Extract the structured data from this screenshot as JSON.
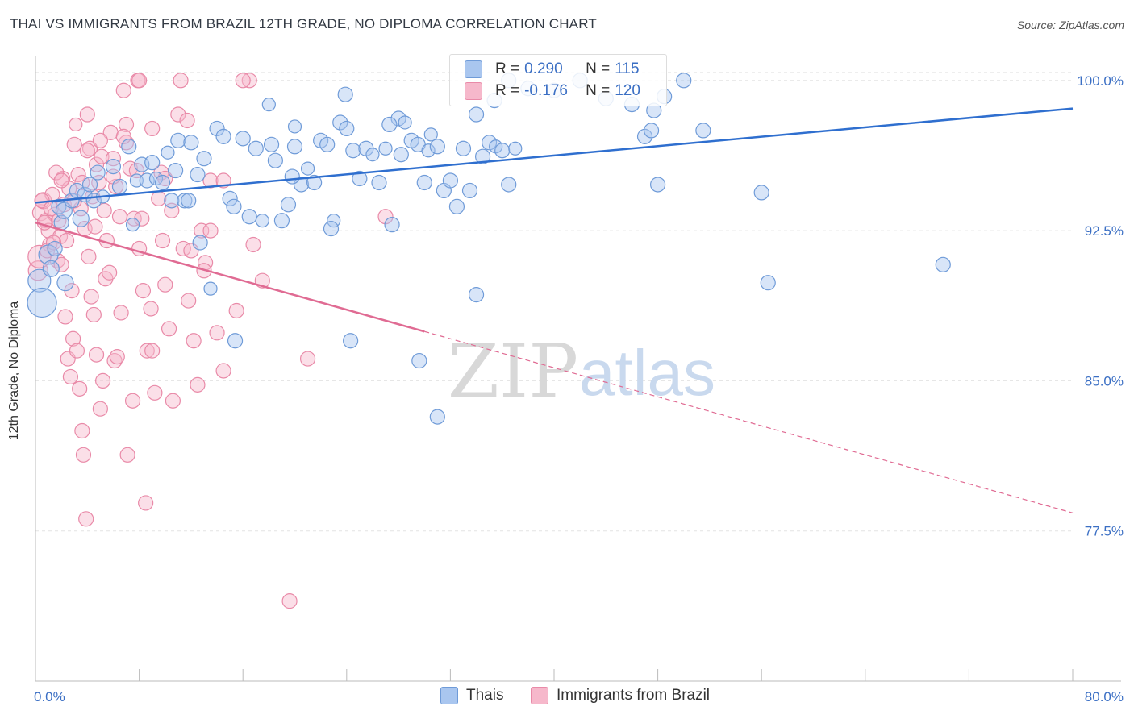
{
  "header": {
    "title": "THAI VS IMMIGRANTS FROM BRAZIL 12TH GRADE, NO DIPLOMA CORRELATION CHART",
    "source": "Source: ZipAtlas.com"
  },
  "watermark": {
    "part1": "ZIP",
    "part2": "atlas"
  },
  "legend": {
    "rows": [
      {
        "r_label": "R =",
        "r_value": "0.290",
        "n_label": "N =",
        "n_value": "115"
      },
      {
        "r_label": "R =",
        "r_value": "-0.176",
        "n_label": "N =",
        "n_value": "120"
      }
    ]
  },
  "bottom_legend": {
    "thais": "Thais",
    "brazil": "Immigrants from Brazil"
  },
  "colors": {
    "thais_fill": "#a9c6ef",
    "thais_stroke": "#6f9bd8",
    "thais_line": "#2f6fcf",
    "brazil_fill": "#f6b8cb",
    "brazil_stroke": "#e98aa8",
    "brazil_line": "#e06b93",
    "tick_label": "#3b6fc4",
    "grid": "#e3e3e3"
  },
  "chart_data": {
    "type": "scatter",
    "title": "THAI VS IMMIGRANTS FROM BRAZIL 12TH GRADE, NO DIPLOMA CORRELATION CHART",
    "xlabel": "",
    "ylabel": "12th Grade, No Diploma",
    "xlim": [
      0,
      80
    ],
    "ylim": [
      70,
      101.2
    ],
    "x_tick_labels": [
      "0.0%",
      "80.0%"
    ],
    "y_ticks": [
      77.5,
      85.0,
      92.5,
      100.0
    ],
    "y_tick_labels": [
      "77.5%",
      "85.0%",
      "92.5%",
      "100.0%"
    ],
    "grid": true,
    "legend_position": "top-center",
    "series": [
      {
        "name": "Thais",
        "R": 0.29,
        "N": 115,
        "trend": {
          "x": [
            0,
            80
          ],
          "y": [
            93.9,
            98.6
          ],
          "style": "solid"
        },
        "points": [
          [
            0.3,
            90.0,
            14
          ],
          [
            0.5,
            88.9,
            18
          ],
          [
            1.0,
            91.3,
            12
          ],
          [
            1.2,
            90.6,
            10
          ],
          [
            1.5,
            91.6,
            9
          ],
          [
            1.8,
            93.7,
            9
          ],
          [
            2.0,
            92.9,
            9
          ],
          [
            2.2,
            93.5,
            10
          ],
          [
            2.3,
            89.9,
            10
          ],
          [
            2.8,
            94.0,
            9
          ],
          [
            3.2,
            94.5,
            9
          ],
          [
            3.5,
            93.1,
            10
          ],
          [
            3.8,
            94.3,
            9
          ],
          [
            4.2,
            94.8,
            9
          ],
          [
            4.5,
            94.0,
            9
          ],
          [
            4.8,
            95.4,
            9
          ],
          [
            5.2,
            94.2,
            8
          ],
          [
            6.0,
            95.7,
            9
          ],
          [
            6.5,
            94.7,
            9
          ],
          [
            7.2,
            96.7,
            9
          ],
          [
            7.5,
            92.8,
            8
          ],
          [
            7.8,
            95.0,
            8
          ],
          [
            8.2,
            95.8,
            9
          ],
          [
            8.6,
            95.0,
            9
          ],
          [
            9.0,
            95.9,
            9
          ],
          [
            9.3,
            95.1,
            8
          ],
          [
            9.8,
            94.9,
            9
          ],
          [
            10.2,
            96.4,
            8
          ],
          [
            10.5,
            94.0,
            9
          ],
          [
            11.0,
            97.0,
            9
          ],
          [
            11.5,
            94.0,
            9
          ],
          [
            12.0,
            96.9,
            9
          ],
          [
            12.5,
            95.3,
            9
          ],
          [
            13.0,
            96.1,
            9
          ],
          [
            13.5,
            89.6,
            8
          ],
          [
            14.0,
            97.6,
            9
          ],
          [
            14.5,
            97.2,
            9
          ],
          [
            15.0,
            94.1,
            9
          ],
          [
            15.3,
            93.7,
            9
          ],
          [
            16.0,
            97.1,
            9
          ],
          [
            17.0,
            96.6,
            9
          ],
          [
            17.5,
            93.0,
            8
          ],
          [
            18.0,
            98.8,
            8
          ],
          [
            18.5,
            96.0,
            9
          ],
          [
            19.0,
            93.0,
            9
          ],
          [
            19.5,
            93.8,
            9
          ],
          [
            20.0,
            96.7,
            9
          ],
          [
            20.5,
            94.8,
            9
          ],
          [
            21.0,
            95.6,
            8
          ],
          [
            21.5,
            94.9,
            9
          ],
          [
            22.0,
            97.0,
            9
          ],
          [
            22.5,
            96.8,
            9
          ],
          [
            23.0,
            93.0,
            8
          ],
          [
            23.5,
            97.9,
            9
          ],
          [
            24.0,
            97.6,
            9
          ],
          [
            24.5,
            96.5,
            9
          ],
          [
            25.0,
            95.1,
            9
          ],
          [
            25.5,
            96.6,
            9
          ],
          [
            26.0,
            96.3,
            8
          ],
          [
            26.5,
            94.9,
            9
          ],
          [
            27.0,
            96.6,
            8
          ],
          [
            27.5,
            92.8,
            9
          ],
          [
            28.0,
            98.1,
            9
          ],
          [
            28.5,
            97.9,
            8
          ],
          [
            29.0,
            97.0,
            9
          ],
          [
            29.5,
            96.8,
            9
          ],
          [
            30.0,
            94.9,
            9
          ],
          [
            30.3,
            96.5,
            8
          ],
          [
            30.5,
            97.3,
            8
          ],
          [
            31.0,
            96.7,
            9
          ],
          [
            31.5,
            94.5,
            9
          ],
          [
            32.0,
            95.0,
            9
          ],
          [
            32.5,
            93.7,
            9
          ],
          [
            33.0,
            96.6,
            9
          ],
          [
            33.5,
            94.5,
            9
          ],
          [
            34.0,
            98.3,
            9
          ],
          [
            34.5,
            96.2,
            9
          ],
          [
            35.0,
            96.9,
            9
          ],
          [
            35.5,
            96.7,
            8
          ],
          [
            36.0,
            96.5,
            9
          ],
          [
            36.5,
            94.8,
            9
          ],
          [
            37.0,
            96.6,
            8
          ],
          [
            12.7,
            91.9,
            9
          ],
          [
            15.4,
            87.0,
            9
          ],
          [
            24.3,
            87.0,
            9
          ],
          [
            29.6,
            86.0,
            9
          ],
          [
            31.0,
            83.2,
            9
          ],
          [
            34.0,
            89.3,
            9
          ],
          [
            47.0,
            97.2,
            9
          ],
          [
            47.5,
            97.5,
            9
          ],
          [
            48.0,
            94.8,
            9
          ],
          [
            50.0,
            100.0,
            9
          ],
          [
            51.5,
            97.5,
            9
          ],
          [
            56.0,
            94.4,
            9
          ],
          [
            56.5,
            89.9,
            9
          ],
          [
            70.0,
            90.8,
            9
          ],
          [
            16.5,
            93.2,
            9
          ],
          [
            20.0,
            97.7,
            8
          ],
          [
            22.8,
            92.6,
            9
          ],
          [
            23.9,
            99.3,
            9
          ],
          [
            27.3,
            97.8,
            9
          ],
          [
            35.4,
            99.0,
            9
          ],
          [
            36.5,
            100.0,
            9
          ],
          [
            38.0,
            99.6,
            9
          ],
          [
            40.0,
            99.5,
            9
          ],
          [
            42.0,
            100.0,
            9
          ],
          [
            44.0,
            99.1,
            9
          ],
          [
            46.0,
            98.8,
            9
          ],
          [
            47.7,
            98.5,
            9
          ],
          [
            48.5,
            99.2,
            9
          ],
          [
            10.8,
            95.5,
            9
          ],
          [
            11.8,
            94.0,
            9
          ],
          [
            18.2,
            96.8,
            9
          ],
          [
            19.8,
            95.2,
            9
          ],
          [
            28.2,
            96.3,
            9
          ]
        ]
      },
      {
        "name": "Immigrants from Brazil",
        "R": -0.176,
        "N": 120,
        "trend": {
          "x": [
            0,
            80
          ],
          "y": [
            92.9,
            78.4
          ],
          "solid_until_x": 30
        },
        "points": [
          [
            0.2,
            90.5,
            12
          ],
          [
            0.3,
            91.2,
            14
          ],
          [
            0.4,
            93.4,
            10
          ],
          [
            0.6,
            94.0,
            10
          ],
          [
            0.8,
            93.0,
            9
          ],
          [
            1.0,
            92.5,
            9
          ],
          [
            1.1,
            91.8,
            9
          ],
          [
            1.3,
            94.3,
            9
          ],
          [
            1.5,
            93.3,
            9
          ],
          [
            1.7,
            91.0,
            9
          ],
          [
            1.9,
            92.2,
            9
          ],
          [
            2.1,
            95.1,
            9
          ],
          [
            2.2,
            93.8,
            9
          ],
          [
            2.4,
            92.0,
            9
          ],
          [
            2.6,
            94.6,
            9
          ],
          [
            2.8,
            89.5,
            9
          ],
          [
            3.0,
            96.8,
            9
          ],
          [
            3.1,
            97.8,
            8
          ],
          [
            3.3,
            95.3,
            9
          ],
          [
            3.5,
            93.6,
            9
          ],
          [
            3.6,
            94.9,
            9
          ],
          [
            3.8,
            92.6,
            9
          ],
          [
            4.0,
            98.3,
            9
          ],
          [
            4.2,
            96.6,
            9
          ],
          [
            4.4,
            94.2,
            9
          ],
          [
            4.6,
            92.7,
            9
          ],
          [
            4.7,
            95.8,
            9
          ],
          [
            4.9,
            94.9,
            9
          ],
          [
            5.1,
            96.2,
            9
          ],
          [
            5.3,
            93.5,
            9
          ],
          [
            5.5,
            92.0,
            9
          ],
          [
            5.8,
            97.4,
            9
          ],
          [
            6.0,
            96.1,
            9
          ],
          [
            6.2,
            94.7,
            9
          ],
          [
            6.5,
            93.2,
            9
          ],
          [
            6.8,
            99.5,
            9
          ],
          [
            7.0,
            97.8,
            9
          ],
          [
            7.3,
            95.6,
            9
          ],
          [
            7.6,
            93.1,
            9
          ],
          [
            7.9,
            100.0,
            9
          ],
          [
            8.0,
            91.6,
            9
          ],
          [
            8.3,
            89.5,
            9
          ],
          [
            8.6,
            86.5,
            9
          ],
          [
            8.9,
            88.6,
            9
          ],
          [
            9.2,
            84.4,
            9
          ],
          [
            9.5,
            94.1,
            9
          ],
          [
            9.8,
            92.0,
            9
          ],
          [
            10.0,
            89.8,
            9
          ],
          [
            10.3,
            87.6,
            9
          ],
          [
            10.6,
            84.0,
            9
          ],
          [
            11.0,
            98.3,
            9
          ],
          [
            11.4,
            91.6,
            9
          ],
          [
            11.8,
            89.0,
            9
          ],
          [
            12.2,
            87.0,
            9
          ],
          [
            12.5,
            84.8,
            9
          ],
          [
            12.8,
            92.5,
            9
          ],
          [
            13.1,
            90.9,
            9
          ],
          [
            13.5,
            95.0,
            9
          ],
          [
            14.0,
            87.4,
            9
          ],
          [
            14.5,
            85.5,
            9
          ],
          [
            16.5,
            100.0,
            9
          ],
          [
            16.8,
            91.8,
            9
          ],
          [
            19.6,
            74.0,
            9
          ],
          [
            21.0,
            86.1,
            9
          ],
          [
            27.0,
            93.2,
            9
          ],
          [
            0.5,
            94.0,
            9
          ],
          [
            0.7,
            92.9,
            9
          ],
          [
            0.9,
            91.5,
            9
          ],
          [
            1.2,
            93.6,
            9
          ],
          [
            1.4,
            91.9,
            9
          ],
          [
            1.6,
            95.4,
            9
          ],
          [
            1.8,
            93.0,
            9
          ],
          [
            2.0,
            90.8,
            9
          ],
          [
            2.3,
            88.2,
            9
          ],
          [
            2.5,
            86.1,
            9
          ],
          [
            2.7,
            85.2,
            9
          ],
          [
            2.9,
            87.1,
            9
          ],
          [
            3.2,
            86.5,
            9
          ],
          [
            3.4,
            84.6,
            9
          ],
          [
            3.6,
            82.5,
            9
          ],
          [
            3.7,
            81.3,
            9
          ],
          [
            3.9,
            78.1,
            9
          ],
          [
            4.1,
            91.2,
            9
          ],
          [
            4.3,
            89.2,
            9
          ],
          [
            4.5,
            88.3,
            9
          ],
          [
            4.7,
            86.3,
            9
          ],
          [
            5.0,
            83.6,
            9
          ],
          [
            5.2,
            85.0,
            9
          ],
          [
            5.4,
            90.1,
            9
          ],
          [
            5.7,
            90.4,
            9
          ],
          [
            6.1,
            86.0,
            9
          ],
          [
            6.3,
            86.2,
            9
          ],
          [
            6.6,
            88.4,
            9
          ],
          [
            7.1,
            81.3,
            9
          ],
          [
            7.5,
            84.0,
            9
          ],
          [
            7.8,
            95.5,
            9
          ],
          [
            8.2,
            93.1,
            9
          ],
          [
            8.5,
            78.9,
            9
          ],
          [
            9.0,
            86.5,
            9
          ],
          [
            9.7,
            95.4,
            9
          ],
          [
            10.5,
            93.5,
            9
          ],
          [
            11.2,
            100.0,
            9
          ],
          [
            11.7,
            98.0,
            9
          ],
          [
            12.0,
            91.5,
            9
          ],
          [
            13.0,
            90.5,
            9
          ],
          [
            13.5,
            92.5,
            9
          ],
          [
            14.5,
            95.0,
            9
          ],
          [
            15.5,
            88.5,
            9
          ],
          [
            16.0,
            100.0,
            9
          ],
          [
            17.5,
            90.0,
            9
          ],
          [
            2.0,
            95.0,
            9
          ],
          [
            3.0,
            94.0,
            9
          ],
          [
            4.0,
            96.5,
            9
          ],
          [
            5.0,
            97.0,
            9
          ],
          [
            6.0,
            95.2,
            9
          ],
          [
            7.0,
            96.9,
            9
          ],
          [
            8.0,
            100.0,
            9
          ],
          [
            9.0,
            97.6,
            9
          ],
          [
            10.0,
            95.1,
            9
          ],
          [
            6.8,
            97.2,
            9
          ]
        ]
      }
    ]
  }
}
